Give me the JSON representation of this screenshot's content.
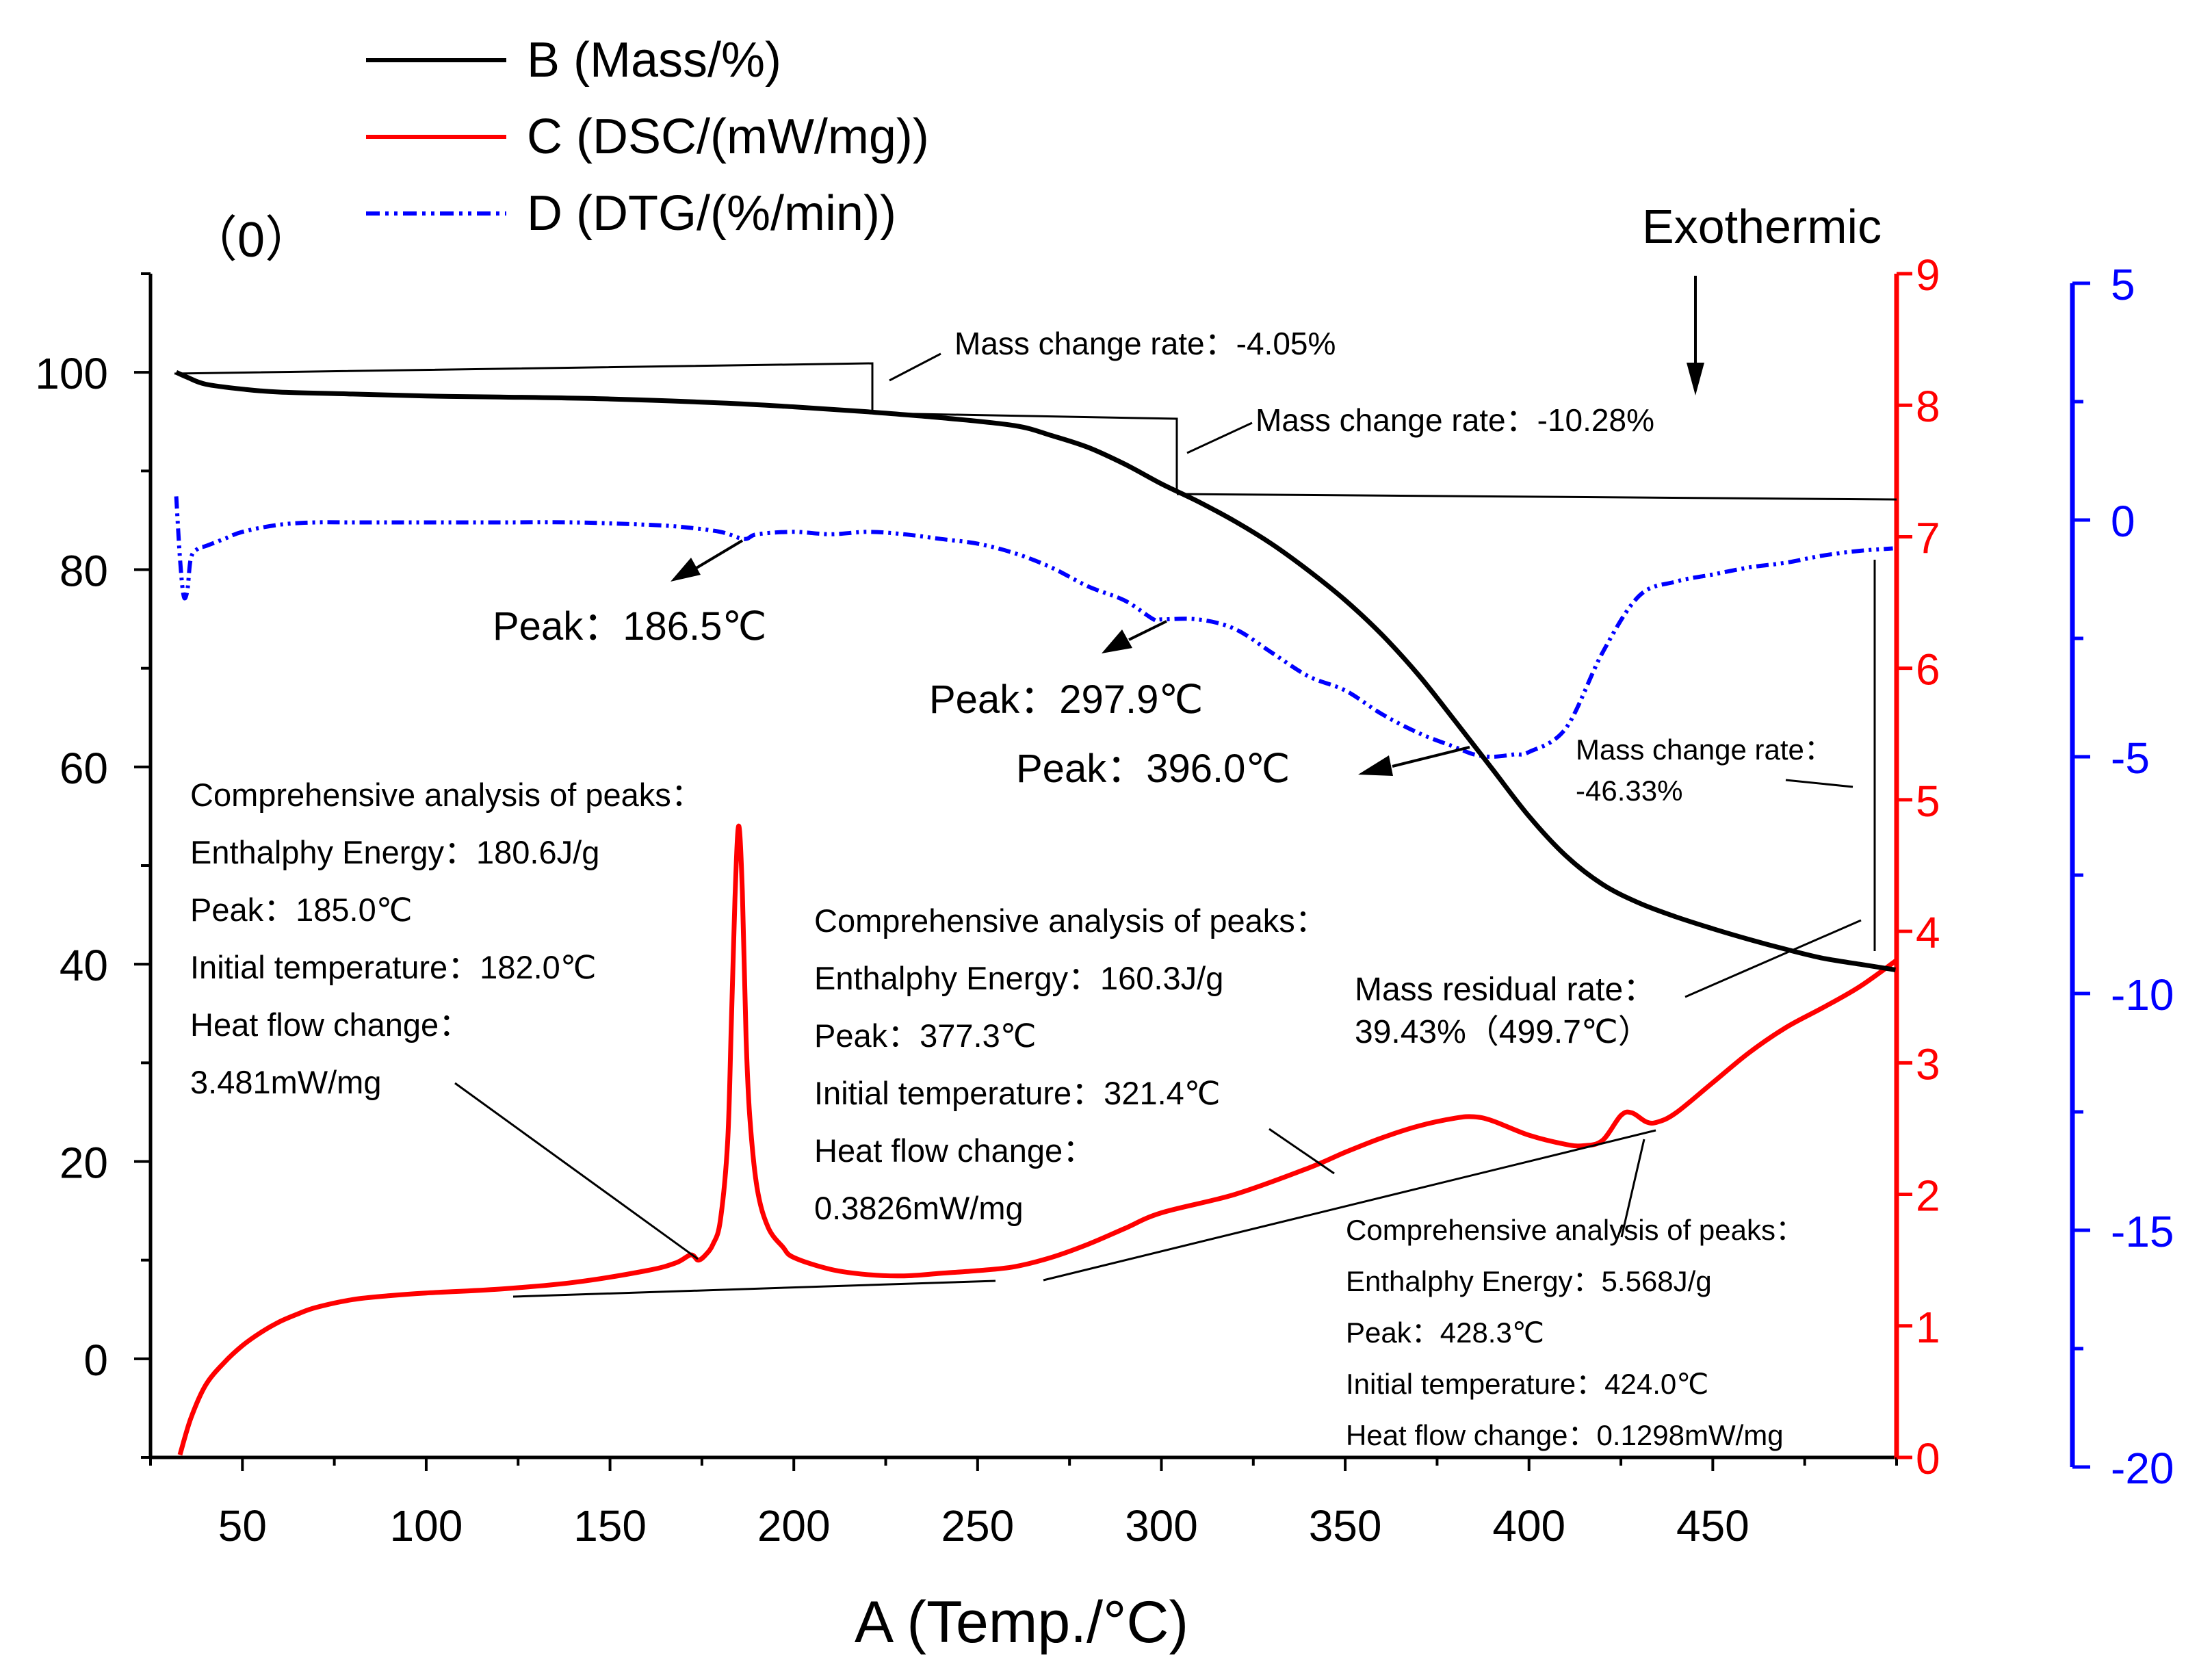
{
  "chart_data": {
    "type": "line",
    "panel_label": "（0）",
    "xlabel": "A (Temp./°C)",
    "xlim": [
      25,
      500
    ],
    "xticks": [
      50,
      100,
      150,
      200,
      250,
      300,
      350,
      400,
      450
    ],
    "y_left": {
      "lim": [
        -10,
        110
      ],
      "ticks": [
        0,
        20,
        40,
        60,
        80,
        100
      ],
      "color": "#000000"
    },
    "y_right1": {
      "lim": [
        0,
        9
      ],
      "ticks": [
        0,
        1,
        2,
        3,
        4,
        5,
        6,
        7,
        8,
        9
      ],
      "color": "#ff0000"
    },
    "y_right2": {
      "lim": [
        -20,
        5
      ],
      "ticks": [
        -20,
        -15,
        -10,
        -5,
        0,
        5
      ],
      "color": "#0000ff"
    },
    "legend": {
      "placement": "top-left, outside plot",
      "items": [
        {
          "label": "B (Mass/%)",
          "color": "#000000",
          "style": "solid"
        },
        {
          "label": "C (DSC/(mW/mg))",
          "color": "#ff0000",
          "style": "solid"
        },
        {
          "label": "D (DTG/(%/min))",
          "color": "#0000ff",
          "style": "dash-dot"
        }
      ]
    },
    "series": [
      {
        "name": "B (Mass/%)",
        "axis": "left",
        "color": "#000000",
        "x": [
          32,
          35,
          40,
          50,
          60,
          80,
          100,
          120,
          150,
          180,
          200,
          220,
          240,
          260,
          270,
          280,
          290,
          300,
          310,
          320,
          330,
          340,
          350,
          360,
          370,
          380,
          390,
          400,
          410,
          420,
          430,
          440,
          450,
          460,
          470,
          480,
          490,
          499.7
        ],
        "y": [
          100,
          99.5,
          98.8,
          98.3,
          98.0,
          97.8,
          97.6,
          97.5,
          97.3,
          96.9,
          96.5,
          96.0,
          95.4,
          94.6,
          93.6,
          92.4,
          90.7,
          88.7,
          86.9,
          84.9,
          82.6,
          79.9,
          76.9,
          73.4,
          69.3,
          64.6,
          59.8,
          55.0,
          51.0,
          48.1,
          46.2,
          44.8,
          43.6,
          42.5,
          41.5,
          40.6,
          40.0,
          39.43
        ]
      },
      {
        "name": "C (DSC/(mW/mg))",
        "axis": "right1",
        "color": "#ff0000",
        "x": [
          33,
          36,
          40,
          45,
          50,
          55,
          60,
          65,
          70,
          80,
          90,
          100,
          120,
          140,
          160,
          168,
          172,
          174,
          176,
          178,
          180,
          182,
          183,
          184,
          185,
          186,
          187,
          188,
          190,
          193,
          197,
          200,
          210,
          220,
          230,
          240,
          250,
          260,
          270,
          280,
          290,
          300,
          320,
          340,
          350,
          360,
          370,
          380,
          385,
          390,
          400,
          410,
          415,
          420,
          425,
          428,
          432,
          435,
          440,
          450,
          460,
          470,
          480,
          490,
          500
        ],
        "y": [
          0.02,
          0.3,
          0.55,
          0.72,
          0.85,
          0.95,
          1.03,
          1.09,
          1.14,
          1.2,
          1.23,
          1.25,
          1.28,
          1.33,
          1.42,
          1.48,
          1.54,
          1.5,
          1.54,
          1.62,
          1.8,
          2.4,
          3.3,
          4.25,
          4.8,
          4.3,
          3.2,
          2.6,
          2.05,
          1.75,
          1.6,
          1.52,
          1.43,
          1.39,
          1.38,
          1.4,
          1.42,
          1.45,
          1.52,
          1.62,
          1.74,
          1.86,
          2.0,
          2.2,
          2.32,
          2.43,
          2.52,
          2.58,
          2.59,
          2.56,
          2.45,
          2.38,
          2.37,
          2.41,
          2.6,
          2.62,
          2.55,
          2.55,
          2.62,
          2.85,
          3.08,
          3.27,
          3.42,
          3.58,
          3.78
        ]
      },
      {
        "name": "D (DTG/(%/min))",
        "axis": "right2",
        "color": "#0000ff",
        "x": [
          32,
          33,
          34,
          35,
          36,
          38,
          40,
          45,
          50,
          60,
          70,
          80,
          100,
          120,
          140,
          160,
          170,
          180,
          186.5,
          190,
          200,
          210,
          220,
          230,
          240,
          250,
          260,
          270,
          280,
          290,
          297.9,
          300,
          310,
          320,
          330,
          340,
          350,
          360,
          370,
          380,
          385,
          390,
          396,
          400,
          410,
          420,
          430,
          440,
          450,
          460,
          470,
          480,
          490,
          499
        ],
        "y": [
          0.5,
          -0.8,
          -1.6,
          -1.5,
          -0.8,
          -0.6,
          -0.55,
          -0.4,
          -0.25,
          -0.1,
          -0.05,
          -0.05,
          -0.05,
          -0.05,
          -0.05,
          -0.1,
          -0.15,
          -0.25,
          -0.4,
          -0.3,
          -0.25,
          -0.3,
          -0.25,
          -0.3,
          -0.4,
          -0.5,
          -0.7,
          -1.0,
          -1.4,
          -1.7,
          -2.1,
          -2.1,
          -2.1,
          -2.3,
          -2.8,
          -3.3,
          -3.6,
          -4.1,
          -4.5,
          -4.8,
          -4.95,
          -5.0,
          -4.95,
          -4.9,
          -4.4,
          -2.8,
          -1.6,
          -1.3,
          -1.15,
          -1.0,
          -0.9,
          -0.75,
          -0.65,
          -0.6
        ]
      }
    ],
    "annotations": {
      "exothermic": "Exothermic",
      "mass_change_1": "Mass change rate：-4.05%",
      "mass_change_2": "Mass change rate：-10.28%",
      "mass_change_3_line1": "Mass change rate：",
      "mass_change_3_line2": "-46.33%",
      "residual_line1": "Mass residual rate：",
      "residual_line2": "39.43%（499.7℃）",
      "dtg_peak_1": "Peak：186.5℃",
      "dtg_peak_2": "Peak：297.9℃",
      "dtg_peak_3": "Peak：396.0℃",
      "box1": [
        "Comprehensive analysis of peaks：",
        "Enthalphy Energy：180.6J/g",
        "Peak：185.0℃",
        "Initial temperature：182.0℃",
        "Heat flow change：",
        "3.481mW/mg"
      ],
      "box2": [
        "Comprehensive analysis of peaks：",
        "Enthalphy Energy：160.3J/g",
        "Peak：377.3℃",
        "Initial temperature：321.4℃",
        "Heat flow change：",
        "0.3826mW/mg"
      ],
      "box3": [
        "Comprehensive analysis of peaks：",
        "Enthalphy Energy：5.568J/g",
        "Peak：428.3℃",
        "Initial temperature：424.0℃",
        "Heat flow change：0.1298mW/mg"
      ]
    }
  }
}
